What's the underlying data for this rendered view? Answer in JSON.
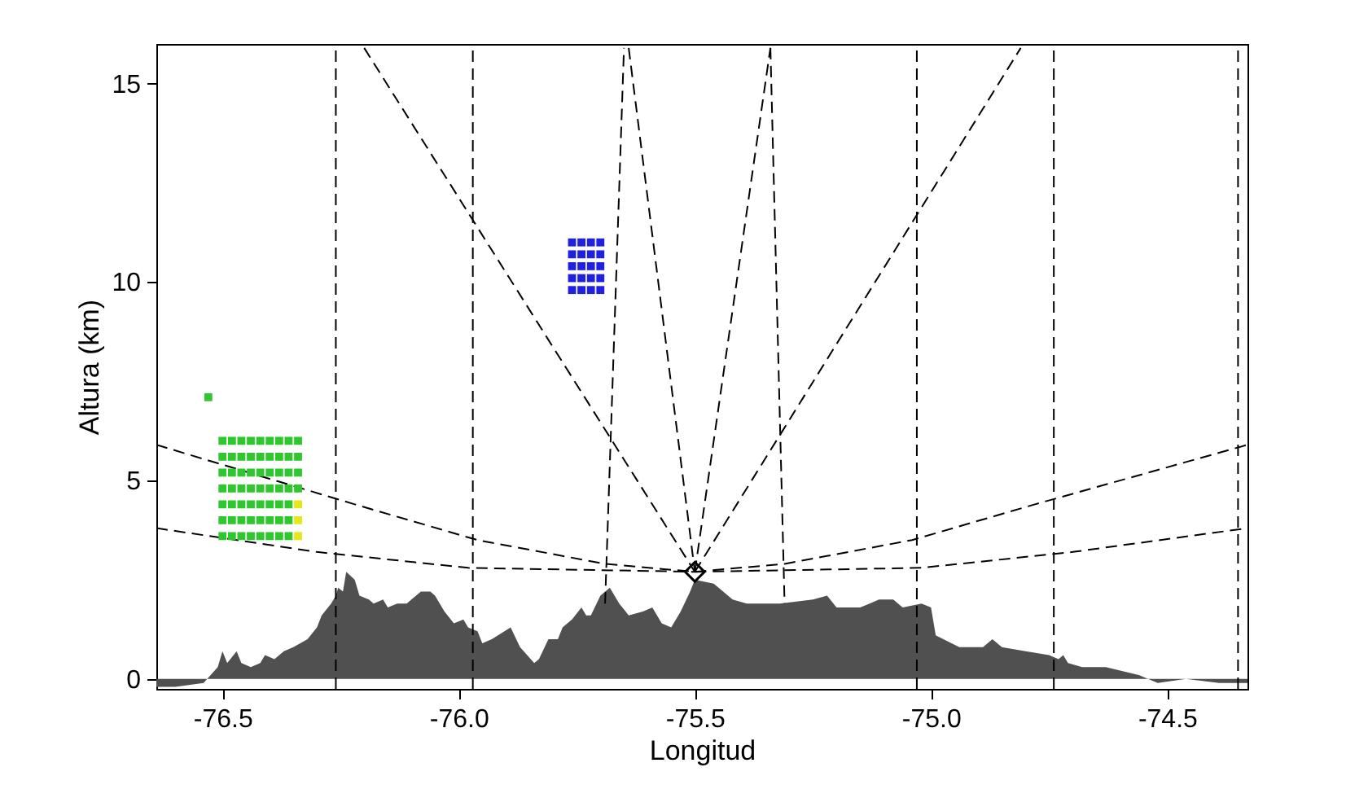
{
  "chart_data": {
    "type": "area",
    "xlabel": "Longitud",
    "ylabel": "Altura (km)",
    "xlim": [
      -76.64,
      -74.33
    ],
    "ylim": [
      -0.25,
      16
    ],
    "xticks": [
      -76.5,
      {
        "value": -76,
        "label": "-76.0"
      },
      -75.5,
      {
        "value": -75,
        "label": "-75.0"
      },
      -74.5
    ],
    "yticks": [
      0,
      5,
      10,
      15
    ],
    "ref_lines": [
      {
        "axis": "x",
        "value": -76.26,
        "line_style": "dashed",
        "color": "#000000"
      },
      {
        "axis": "x",
        "value": -75.97,
        "line_style": "dashed",
        "color": "#000000"
      },
      {
        "axis": "x",
        "value": -75.03,
        "line_style": "dashed",
        "color": "#000000"
      },
      {
        "axis": "x",
        "value": -74.74,
        "line_style": "dashed",
        "color": "#000000"
      },
      {
        "axis": "x",
        "value": -74.35,
        "line_style": "dashed",
        "color": "#000000"
      }
    ],
    "series": [
      {
        "color": "#505050",
        "x": [
          -76.64,
          -76.6,
          -76.54,
          -76.51,
          -76.5,
          -76.49,
          -76.47,
          -76.46,
          -76.44,
          -76.42,
          -76.41,
          -76.39,
          -76.37,
          -76.35,
          -76.32,
          -76.3,
          -76.29,
          -76.27,
          -76.26,
          -76.255,
          -76.245,
          -76.238,
          -76.22,
          -76.21,
          -76.19,
          -76.18,
          -76.16,
          -76.15,
          -76.13,
          -76.11,
          -76.1,
          -76.08,
          -76.06,
          -76.05,
          -76.03,
          -76.01,
          -75.99,
          -75.98,
          -75.96,
          -75.95,
          -75.93,
          -75.89,
          -75.87,
          -75.84,
          -75.83,
          -75.81,
          -75.79,
          -75.78,
          -75.76,
          -75.74,
          -75.73,
          -75.72,
          -75.7,
          -75.68,
          -75.66,
          -75.64,
          -75.61,
          -75.59,
          -75.57,
          -75.55,
          -75.53,
          -75.51,
          -75.5,
          -75.46,
          -75.42,
          -75.39,
          -75.32,
          -75.25,
          -75.22,
          -75.2,
          -75.15,
          -75.13,
          -75.11,
          -75.08,
          -75.06,
          -75.02,
          -75.0,
          -74.99,
          -74.94,
          -74.89,
          -74.87,
          -74.85,
          -74.8,
          -74.75,
          -74.73,
          -74.72,
          -74.71,
          -74.68,
          -74.66,
          -74.63,
          -74.56,
          -74.52,
          -74.46,
          -74.39,
          -74.33
        ],
        "values": [
          -0.2,
          -0.2,
          -0.1,
          0.3,
          0.7,
          0.4,
          0.7,
          0.4,
          0.3,
          0.4,
          0.6,
          0.5,
          0.7,
          0.8,
          1.0,
          1.3,
          1.6,
          1.9,
          2.1,
          2.3,
          2.2,
          2.7,
          2.5,
          2.1,
          2.0,
          1.9,
          2.0,
          1.8,
          1.9,
          1.9,
          2.0,
          2.2,
          2.2,
          2.1,
          1.7,
          1.4,
          1.5,
          1.3,
          1.2,
          0.9,
          1.0,
          1.3,
          0.8,
          0.4,
          0.5,
          1.0,
          1.0,
          1.3,
          1.5,
          1.8,
          1.6,
          1.6,
          2.1,
          2.3,
          1.9,
          1.6,
          1.7,
          1.8,
          1.4,
          1.3,
          1.7,
          2.2,
          2.5,
          2.4,
          2.0,
          1.9,
          1.9,
          2.0,
          2.1,
          1.8,
          1.8,
          1.9,
          2.0,
          2.0,
          1.8,
          1.9,
          1.8,
          1.1,
          0.8,
          0.8,
          1.0,
          0.8,
          0.7,
          0.6,
          0.5,
          0.6,
          0.4,
          0.3,
          0.3,
          0.3,
          0.1,
          -0.1,
          0.0,
          -0.1,
          -0.1
        ]
      },
      {
        "type": "line",
        "color": "#000000",
        "line_style": "dashed",
        "x": [
          -75.5,
          -76.2
        ],
        "values": [
          2.7,
          15.9
        ]
      },
      {
        "type": "line",
        "color": "#000000",
        "line_style": "dashed",
        "x": [
          -75.5,
          -74.81
        ],
        "values": [
          2.7,
          15.9
        ]
      },
      {
        "type": "line",
        "color": "#000000",
        "line_style": "dashed",
        "x": [
          -75.5,
          -75.64
        ],
        "values": [
          2.7,
          15.9
        ]
      },
      {
        "type": "line",
        "color": "#000000",
        "line_style": "dashed",
        "x": [
          -75.5,
          -75.34
        ],
        "values": [
          2.7,
          15.9
        ]
      },
      {
        "type": "line",
        "color": "#000000",
        "line_style": "dashed",
        "x": [
          -75.69,
          -75.65
        ],
        "values": [
          1.9,
          15.9
        ]
      },
      {
        "type": "line",
        "color": "#000000",
        "line_style": "dashed",
        "x": [
          -75.31,
          -75.34
        ],
        "values": [
          1.9,
          15.9
        ]
      },
      {
        "type": "line",
        "color": "#000000",
        "line_style": "dashed",
        "x": [
          -75.5,
          -75.69,
          -75.96,
          -76.22,
          -76.64
        ],
        "values": [
          2.7,
          2.9,
          3.5,
          4.4,
          5.9
        ]
      },
      {
        "type": "line",
        "color": "#000000",
        "line_style": "dashed",
        "x": [
          -75.5,
          -75.98,
          -76.3,
          -76.64
        ],
        "values": [
          2.7,
          2.8,
          3.2,
          3.8
        ]
      },
      {
        "type": "line",
        "color": "#000000",
        "line_style": "dashed",
        "x": [
          -75.5,
          -75.31,
          -75.04,
          -74.78,
          -74.33
        ],
        "values": [
          2.7,
          2.9,
          3.5,
          4.4,
          5.9
        ]
      },
      {
        "type": "line",
        "color": "#000000",
        "line_style": "dashed",
        "x": [
          -75.5,
          -75.02,
          -74.7,
          -74.33
        ],
        "values": [
          2.7,
          2.8,
          3.2,
          3.8
        ]
      },
      {
        "type": "scatter",
        "marker": "square",
        "color": "#2ec82e",
        "x": [
          -76.5,
          -76.5,
          -76.5,
          -76.5,
          -76.5,
          -76.5,
          -76.5,
          -76.48,
          -76.48,
          -76.48,
          -76.48,
          -76.48,
          -76.48,
          -76.48,
          -76.46,
          -76.46,
          -76.46,
          -76.46,
          -76.46,
          -76.46,
          -76.46,
          -76.44,
          -76.44,
          -76.44,
          -76.44,
          -76.44,
          -76.44,
          -76.44,
          -76.42,
          -76.42,
          -76.42,
          -76.42,
          -76.42,
          -76.42,
          -76.42,
          -76.4,
          -76.4,
          -76.4,
          -76.4,
          -76.4,
          -76.4,
          -76.4,
          -76.38,
          -76.38,
          -76.38,
          -76.38,
          -76.38,
          -76.38,
          -76.38,
          -76.36,
          -76.36,
          -76.36,
          -76.36,
          -76.36,
          -76.36,
          -76.36,
          -76.34,
          -76.34,
          -76.34,
          -76.34,
          -76.53
        ],
        "values": [
          3.6,
          4.0,
          4.4,
          4.8,
          5.2,
          5.6,
          6.0,
          3.6,
          4.0,
          4.4,
          4.8,
          5.2,
          5.6,
          6.0,
          3.6,
          4.0,
          4.4,
          4.8,
          5.2,
          5.6,
          6.0,
          3.6,
          4.0,
          4.4,
          4.8,
          5.2,
          5.6,
          6.0,
          3.6,
          4.0,
          4.4,
          4.8,
          5.2,
          5.6,
          6.0,
          3.6,
          4.0,
          4.4,
          4.8,
          5.2,
          5.6,
          6.0,
          3.6,
          4.0,
          4.4,
          4.8,
          5.2,
          5.6,
          6.0,
          3.6,
          4.0,
          4.4,
          4.8,
          5.2,
          5.6,
          6.0,
          4.8,
          5.2,
          5.6,
          6.0,
          7.1
        ]
      },
      {
        "type": "scatter",
        "marker": "square",
        "color": "#e6e619",
        "x": [
          -76.34,
          -76.34,
          -76.34
        ],
        "values": [
          3.6,
          4.0,
          4.4
        ]
      },
      {
        "type": "scatter",
        "marker": "square",
        "color": "#2020e0",
        "x": [
          -75.76,
          -75.76,
          -75.76,
          -75.76,
          -75.76,
          -75.74,
          -75.74,
          -75.74,
          -75.74,
          -75.74,
          -75.72,
          -75.72,
          -75.72,
          -75.72,
          -75.72,
          -75.7,
          -75.7,
          -75.7,
          -75.7,
          -75.7
        ],
        "values": [
          9.8,
          10.1,
          10.4,
          10.7,
          11.0,
          9.8,
          10.1,
          10.4,
          10.7,
          11.0,
          9.8,
          10.1,
          10.4,
          10.7,
          11.0,
          9.8,
          10.1,
          10.4,
          10.7,
          11.0
        ]
      },
      {
        "type": "scatter",
        "marker": "diamond",
        "color": "#000000",
        "x": [
          -75.5
        ],
        "values": [
          2.7
        ]
      }
    ]
  }
}
